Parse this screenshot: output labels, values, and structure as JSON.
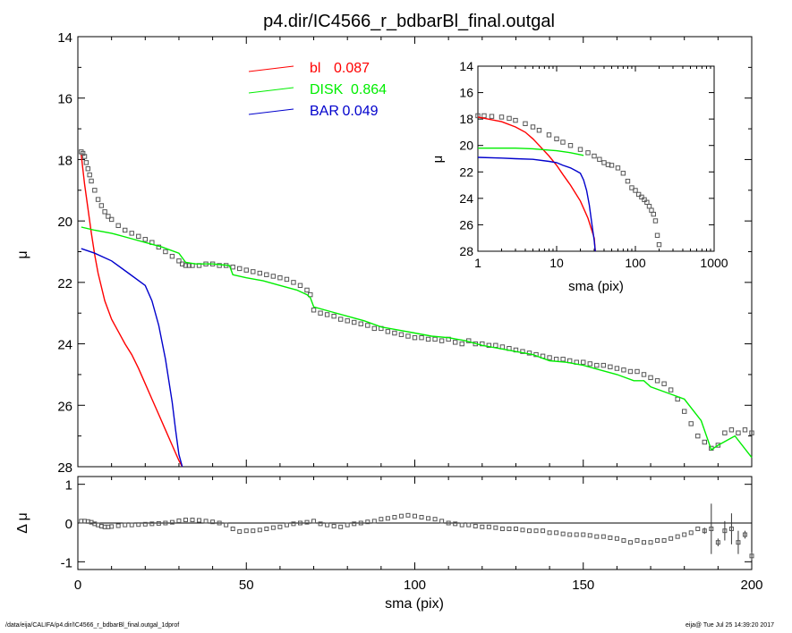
{
  "title": "p4.dir/IC4566_r_bdbarBl_final.outgal",
  "footer": {
    "left": "/data/eija/CALIFA/p4.dir/IC4566_r_bdbarBl_final.outgal_1dprof",
    "right": "eija@  Tue Jul 25 14:39:20 2017"
  },
  "chart_data": [
    {
      "id": "main",
      "type": "line",
      "xlabel": "",
      "ylabel": "μ",
      "xlim": [
        0,
        200
      ],
      "ylim": [
        28,
        14
      ],
      "yticks": [
        "14",
        "16",
        "18",
        "20",
        "22",
        "24",
        "26",
        "28"
      ],
      "legend": {
        "placement": "top-center",
        "entries": [
          {
            "name": "bl",
            "value": "0.087",
            "color": "#ff0000"
          },
          {
            "name": "DISK",
            "value": "0.864",
            "color": "#00ee00"
          },
          {
            "name": "BAR",
            "value": "0.049",
            "color": "#0000cc"
          }
        ]
      },
      "series": [
        {
          "name": "data",
          "style": "square-markers",
          "color": "#555555",
          "x": [
            1,
            1.5,
            2,
            2.5,
            3,
            3.5,
            4,
            5,
            6,
            7,
            8,
            9,
            10,
            12,
            14,
            16,
            18,
            20,
            22,
            24,
            26,
            28,
            30,
            31,
            32,
            33,
            34,
            36,
            38,
            40,
            42,
            44,
            46,
            48,
            50,
            52,
            54,
            56,
            58,
            60,
            62,
            64,
            66,
            68,
            69,
            70,
            72,
            74,
            76,
            78,
            80,
            82,
            84,
            86,
            88,
            90,
            92,
            94,
            96,
            98,
            100,
            102,
            104,
            106,
            108,
            110,
            112,
            114,
            116,
            118,
            120,
            122,
            124,
            126,
            128,
            130,
            132,
            134,
            136,
            138,
            140,
            142,
            144,
            146,
            148,
            150,
            152,
            154,
            156,
            158,
            160,
            162,
            164,
            166,
            168,
            170,
            172,
            174,
            176,
            178,
            180,
            182,
            184,
            186,
            188,
            190,
            192,
            194,
            196,
            198,
            200
          ],
          "y": [
            17.75,
            17.8,
            17.9,
            18.1,
            18.3,
            18.5,
            18.7,
            19.0,
            19.3,
            19.5,
            19.7,
            19.85,
            19.95,
            20.15,
            20.3,
            20.4,
            20.5,
            20.6,
            20.7,
            20.85,
            21.0,
            21.15,
            21.3,
            21.4,
            21.45,
            21.45,
            21.45,
            21.45,
            21.4,
            21.4,
            21.45,
            21.45,
            21.5,
            21.55,
            21.6,
            21.65,
            21.7,
            21.75,
            21.8,
            21.85,
            21.9,
            22.0,
            22.1,
            22.25,
            22.4,
            22.9,
            23.0,
            23.05,
            23.1,
            23.2,
            23.25,
            23.3,
            23.35,
            23.4,
            23.5,
            23.5,
            23.6,
            23.65,
            23.7,
            23.75,
            23.8,
            23.8,
            23.85,
            23.85,
            23.9,
            23.85,
            23.95,
            24.0,
            23.9,
            24.0,
            24.0,
            24.05,
            24.05,
            24.1,
            24.15,
            24.2,
            24.25,
            24.3,
            24.35,
            24.4,
            24.45,
            24.5,
            24.5,
            24.55,
            24.6,
            24.6,
            24.65,
            24.7,
            24.7,
            24.75,
            24.8,
            24.85,
            24.9,
            24.9,
            25.0,
            25.1,
            25.2,
            25.3,
            25.5,
            25.8,
            26.2,
            26.6,
            27.0,
            27.2,
            27.4,
            27.3,
            26.9,
            26.8,
            26.9,
            26.8,
            26.9
          ]
        },
        {
          "name": "bl",
          "style": "line",
          "color": "#ff0000",
          "x": [
            1,
            2,
            3,
            4,
            5,
            6,
            8,
            10,
            12,
            14,
            16,
            18,
            20,
            22,
            24,
            26,
            28,
            30,
            31
          ],
          "y": [
            17.85,
            18.8,
            19.6,
            20.4,
            21.1,
            21.7,
            22.6,
            23.2,
            23.6,
            24.0,
            24.35,
            24.8,
            25.3,
            25.8,
            26.3,
            26.8,
            27.3,
            27.8,
            28.0
          ]
        },
        {
          "name": "DISK",
          "style": "line",
          "color": "#00ee00",
          "x": [
            1,
            5,
            10,
            15,
            20,
            25,
            30,
            32,
            35,
            40,
            45,
            46,
            50,
            55,
            60,
            65,
            68,
            69,
            70,
            75,
            80,
            85,
            90,
            95,
            100,
            105,
            110,
            115,
            120,
            125,
            130,
            135,
            140,
            145,
            150,
            155,
            160,
            165,
            168,
            170,
            175,
            180,
            185,
            188,
            190,
            195,
            200
          ],
          "y": [
            20.2,
            20.3,
            20.4,
            20.55,
            20.7,
            20.85,
            21.05,
            21.35,
            21.4,
            21.4,
            21.45,
            21.75,
            21.85,
            21.95,
            22.1,
            22.25,
            22.4,
            22.5,
            22.8,
            22.95,
            23.1,
            23.25,
            23.45,
            23.55,
            23.65,
            23.75,
            23.8,
            23.9,
            24.05,
            24.15,
            24.25,
            24.35,
            24.55,
            24.6,
            24.7,
            24.85,
            25.0,
            25.2,
            25.2,
            25.4,
            25.6,
            25.8,
            26.5,
            27.45,
            27.3,
            27.0,
            27.7
          ]
        },
        {
          "name": "BAR",
          "style": "line",
          "color": "#0000cc",
          "x": [
            1,
            5,
            10,
            15,
            20,
            22,
            24,
            26,
            28,
            29,
            30,
            31
          ],
          "y": [
            20.9,
            21.05,
            21.3,
            21.7,
            22.1,
            22.6,
            23.4,
            24.5,
            25.9,
            26.8,
            27.6,
            28.0
          ]
        }
      ]
    },
    {
      "id": "inset",
      "type": "line",
      "xlabel": "sma (pix)",
      "ylabel": "μ",
      "xscale": "log",
      "xlim": [
        1,
        1000
      ],
      "ylim": [
        28,
        14
      ],
      "xticks": [
        "1",
        "10",
        "100",
        "1000"
      ],
      "yticks": [
        "14",
        "16",
        "18",
        "20",
        "22",
        "24",
        "26",
        "28"
      ],
      "series": [
        {
          "name": "data",
          "style": "square-markers",
          "color": "#555555",
          "x": [
            1,
            1.2,
            1.5,
            2,
            2.5,
            3,
            4,
            5,
            6,
            8,
            10,
            12,
            15,
            20,
            25,
            30,
            35,
            40,
            45,
            50,
            60,
            70,
            80,
            90,
            100,
            110,
            120,
            130,
            140,
            150,
            160,
            170,
            180,
            190,
            200
          ],
          "y": [
            17.75,
            17.75,
            17.8,
            17.85,
            17.95,
            18.1,
            18.35,
            18.6,
            18.85,
            19.2,
            19.5,
            19.75,
            20.0,
            20.3,
            20.55,
            20.8,
            21.05,
            21.3,
            21.45,
            21.5,
            21.7,
            22.1,
            22.7,
            23.2,
            23.4,
            23.7,
            23.9,
            24.1,
            24.3,
            24.6,
            24.9,
            25.2,
            25.7,
            26.8,
            27.5
          ]
        },
        {
          "name": "bl",
          "style": "line",
          "color": "#ff0000",
          "x": [
            1,
            2,
            3,
            4,
            5,
            6,
            8,
            10,
            12,
            15,
            20,
            25,
            30,
            31
          ],
          "y": [
            17.85,
            18.2,
            18.6,
            19.0,
            19.5,
            20.0,
            20.8,
            21.5,
            22.2,
            23.0,
            24.2,
            25.5,
            27.0,
            28.0
          ]
        },
        {
          "name": "DISK",
          "style": "line",
          "color": "#00ee00",
          "x": [
            1,
            2,
            3,
            5,
            8,
            10,
            15,
            20,
            22
          ],
          "y": [
            20.2,
            20.2,
            20.2,
            20.25,
            20.35,
            20.4,
            20.55,
            20.7,
            20.75
          ]
        },
        {
          "name": "BAR",
          "style": "line",
          "color": "#0000cc",
          "x": [
            1,
            2,
            3,
            5,
            8,
            10,
            12,
            15,
            18,
            20,
            22,
            24,
            26,
            28,
            30,
            31
          ],
          "y": [
            20.9,
            20.95,
            21.0,
            21.05,
            21.2,
            21.3,
            21.5,
            21.7,
            21.95,
            22.1,
            22.6,
            23.4,
            24.5,
            25.9,
            27.2,
            28.0
          ]
        }
      ]
    },
    {
      "id": "residual",
      "type": "scatter",
      "xlabel": "sma (pix)",
      "ylabel": "Δ μ",
      "xlim": [
        0,
        200
      ],
      "ylim": [
        -1.2,
        1.2
      ],
      "xticks": [
        "0",
        "50",
        "100",
        "150",
        "200"
      ],
      "yticks": [
        "1",
        "0",
        "-1"
      ],
      "series": [
        {
          "name": "residual",
          "style": "square-markers",
          "color": "#555555",
          "x": [
            1,
            2,
            3,
            4,
            5,
            6,
            7,
            8,
            9,
            10,
            12,
            14,
            16,
            18,
            20,
            22,
            24,
            26,
            28,
            30,
            32,
            34,
            36,
            38,
            40,
            42,
            44,
            46,
            48,
            50,
            52,
            54,
            56,
            58,
            60,
            62,
            64,
            66,
            68,
            70,
            72,
            74,
            76,
            78,
            80,
            82,
            84,
            86,
            88,
            90,
            92,
            94,
            96,
            98,
            100,
            102,
            104,
            106,
            108,
            110,
            112,
            114,
            116,
            118,
            120,
            122,
            124,
            126,
            128,
            130,
            132,
            134,
            136,
            138,
            140,
            142,
            144,
            146,
            148,
            150,
            152,
            154,
            156,
            158,
            160,
            162,
            164,
            166,
            168,
            170,
            172,
            174,
            176,
            178,
            180,
            182,
            184,
            186,
            188,
            190,
            192,
            194,
            196,
            198,
            200
          ],
          "y": [
            0.05,
            0.05,
            0.04,
            0.02,
            -0.02,
            -0.05,
            -0.08,
            -0.1,
            -0.1,
            -0.09,
            -0.07,
            -0.05,
            -0.05,
            -0.04,
            -0.03,
            -0.02,
            -0.01,
            0.0,
            0.02,
            0.06,
            0.08,
            0.08,
            0.07,
            0.05,
            0.03,
            0.0,
            -0.05,
            -0.15,
            -0.22,
            -0.2,
            -0.2,
            -0.18,
            -0.15,
            -0.12,
            -0.1,
            -0.05,
            -0.02,
            0.0,
            0.02,
            0.05,
            -0.02,
            -0.05,
            -0.08,
            -0.1,
            -0.05,
            -0.02,
            0.0,
            0.03,
            0.05,
            0.1,
            0.12,
            0.15,
            0.18,
            0.2,
            0.18,
            0.15,
            0.12,
            0.1,
            0.05,
            0.0,
            -0.02,
            -0.05,
            -0.05,
            -0.08,
            -0.1,
            -0.1,
            -0.12,
            -0.15,
            -0.15,
            -0.15,
            -0.18,
            -0.2,
            -0.2,
            -0.2,
            -0.25,
            -0.25,
            -0.28,
            -0.3,
            -0.3,
            -0.3,
            -0.32,
            -0.35,
            -0.35,
            -0.38,
            -0.4,
            -0.45,
            -0.5,
            -0.45,
            -0.5,
            -0.5,
            -0.45,
            -0.45,
            -0.4,
            -0.35,
            -0.3,
            -0.25,
            -0.15,
            -0.2,
            -0.15,
            -0.5,
            -0.2,
            -0.15,
            -0.5,
            -0.3,
            -0.85
          ],
          "errors": [
            0,
            0,
            0,
            0,
            0,
            0,
            0,
            0,
            0,
            0,
            0,
            0,
            0,
            0,
            0,
            0,
            0,
            0,
            0,
            0,
            0,
            0,
            0,
            0,
            0,
            0,
            0,
            0,
            0,
            0,
            0,
            0,
            0,
            0,
            0,
            0,
            0,
            0,
            0,
            0,
            0,
            0,
            0,
            0,
            0,
            0,
            0,
            0,
            0,
            0,
            0,
            0,
            0,
            0,
            0,
            0,
            0,
            0,
            0,
            0,
            0,
            0,
            0,
            0,
            0,
            0,
            0,
            0,
            0,
            0,
            0,
            0,
            0,
            0,
            0,
            0,
            0,
            0,
            0,
            0,
            0,
            0,
            0,
            0,
            0,
            0,
            0,
            0,
            0,
            0,
            0,
            0,
            0,
            0,
            0,
            0,
            0,
            0.08,
            0.65,
            0.1,
            0.25,
            0.4,
            0.3,
            0.1,
            0.1
          ]
        }
      ]
    }
  ]
}
